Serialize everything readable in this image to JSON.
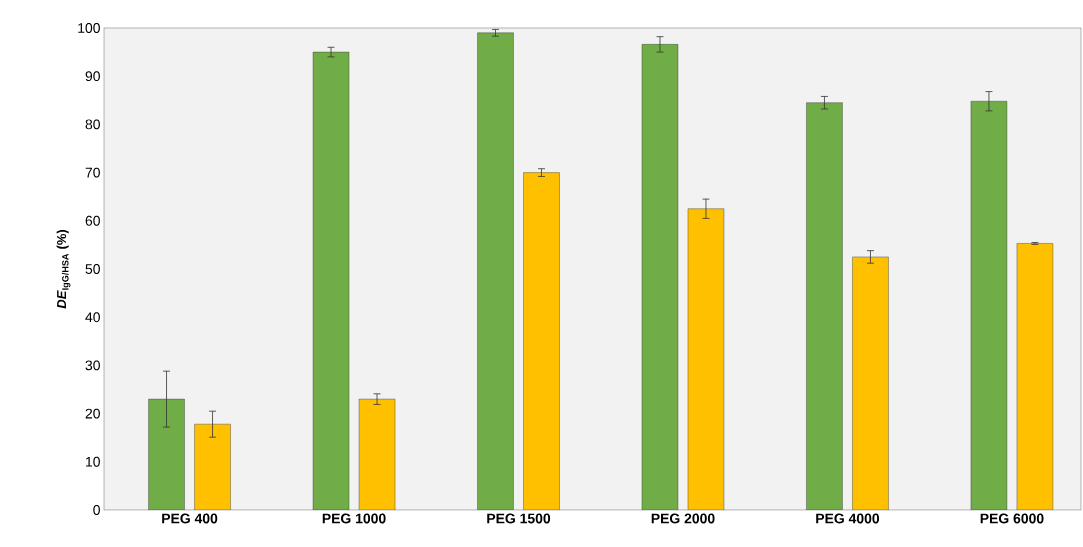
{
  "chart_data": {
    "type": "bar",
    "ylabel": "*DE*$_{IgG/HSA}$ (%)",
    "categories": [
      "PEG 400",
      "PEG 1000",
      "PEG 1500",
      "PEG 2000",
      "PEG 4000",
      "PEG 6000"
    ],
    "series": [
      {
        "color": "#70ad47",
        "values": [
          23,
          95,
          99,
          96.6,
          84.5,
          84.8
        ],
        "errors": [
          5.8,
          1,
          0.7,
          1.6,
          1.3,
          2
        ]
      },
      {
        "color": "#ffc000",
        "values": [
          17.8,
          23,
          70,
          62.5,
          52.5,
          55.3
        ],
        "errors": [
          2.7,
          1.1,
          0.8,
          2,
          1.3,
          0.2
        ]
      }
    ],
    "ylim": [
      0,
      100
    ],
    "yticks": [
      0,
      10,
      20,
      30,
      40,
      50,
      60,
      70,
      80,
      90,
      100
    ]
  }
}
